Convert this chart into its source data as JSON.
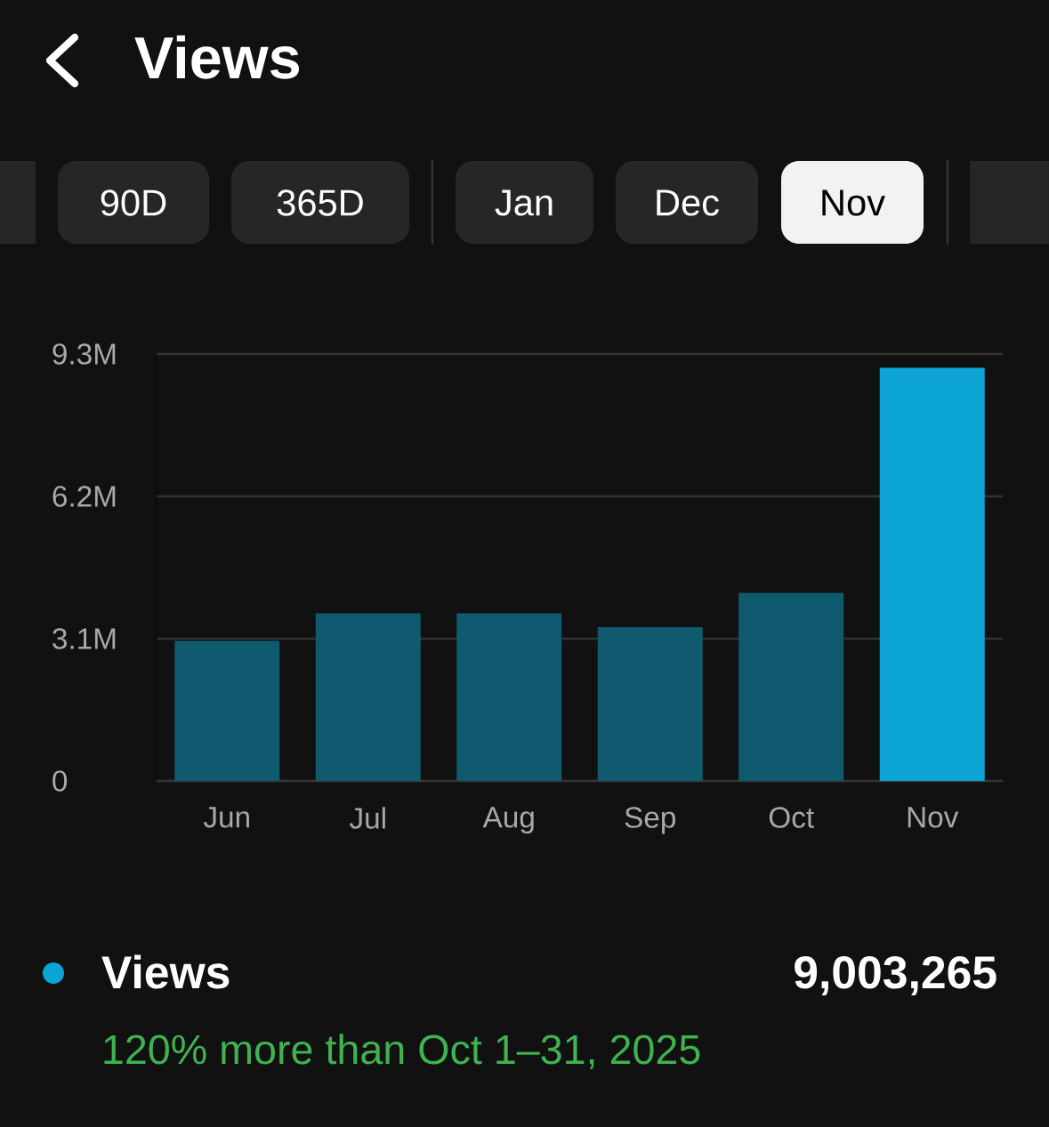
{
  "chart_data": {
    "type": "bar",
    "title": "Views",
    "categories": [
      "Jun",
      "Jul",
      "Aug",
      "Sep",
      "Oct",
      "Nov"
    ],
    "series": [
      {
        "name": "Views",
        "color": "#0ca4d4",
        "values": [
          3.05,
          3.65,
          3.65,
          3.35,
          4.1,
          9.0
        ],
        "colors": [
          "#0f5a6e",
          "#0f5a6e",
          "#0f5a6e",
          "#0f5a6e",
          "#0f5a6e",
          "#0ca4d4"
        ]
      }
    ],
    "ylim": [
      0,
      9.3
    ],
    "yticks": [
      0,
      {
        "value": 3.1,
        "label": "3.1M"
      },
      {
        "value": 6.2,
        "label": "6.2M"
      },
      {
        "value": 9.3,
        "label": "9.3M"
      }
    ],
    "grid": "y",
    "legend": "bottom",
    "annotations": [
      "90D",
      "365D",
      "Jan",
      "Dec",
      "Nov",
      "9,003,265",
      "120% more than Oct 1–31, 2025"
    ]
  }
}
